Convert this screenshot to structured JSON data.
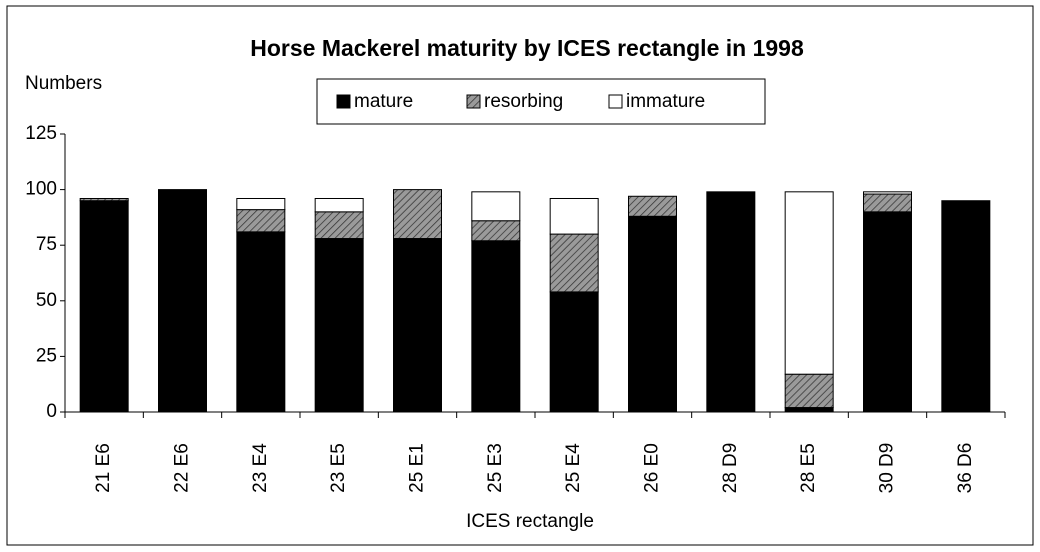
{
  "chart_data": {
    "type": "stacked_bar",
    "title": "Horse Mackerel maturity by ICES rectangle in 1998",
    "ylabel": "Numbers",
    "xlabel": "ICES rectangle",
    "categories": [
      "21 E6",
      "22 E6",
      "23 E4",
      "23 E5",
      "25 E1",
      "25 E3",
      "25 E4",
      "26 E0",
      "28 D9",
      "28 E5",
      "30 D9",
      "36 D6"
    ],
    "series": [
      {
        "name": "mature",
        "color": "#000000",
        "values": [
          95,
          100,
          81,
          78,
          78,
          77,
          54,
          88,
          99,
          2,
          90,
          95
        ]
      },
      {
        "name": "resorbing",
        "color": "#808080",
        "hatch": true,
        "values": [
          1,
          0,
          10,
          12,
          22,
          9,
          26,
          9,
          0,
          15,
          8,
          0
        ]
      },
      {
        "name": "immature",
        "color": "#ffffff",
        "values": [
          0,
          0,
          5,
          6,
          0,
          13,
          16,
          0,
          0,
          82,
          1,
          0
        ]
      }
    ],
    "ylim": [
      0,
      125
    ],
    "yticks": [
      0,
      25,
      50,
      75,
      100,
      125
    ],
    "grid": false,
    "legend": "top"
  }
}
